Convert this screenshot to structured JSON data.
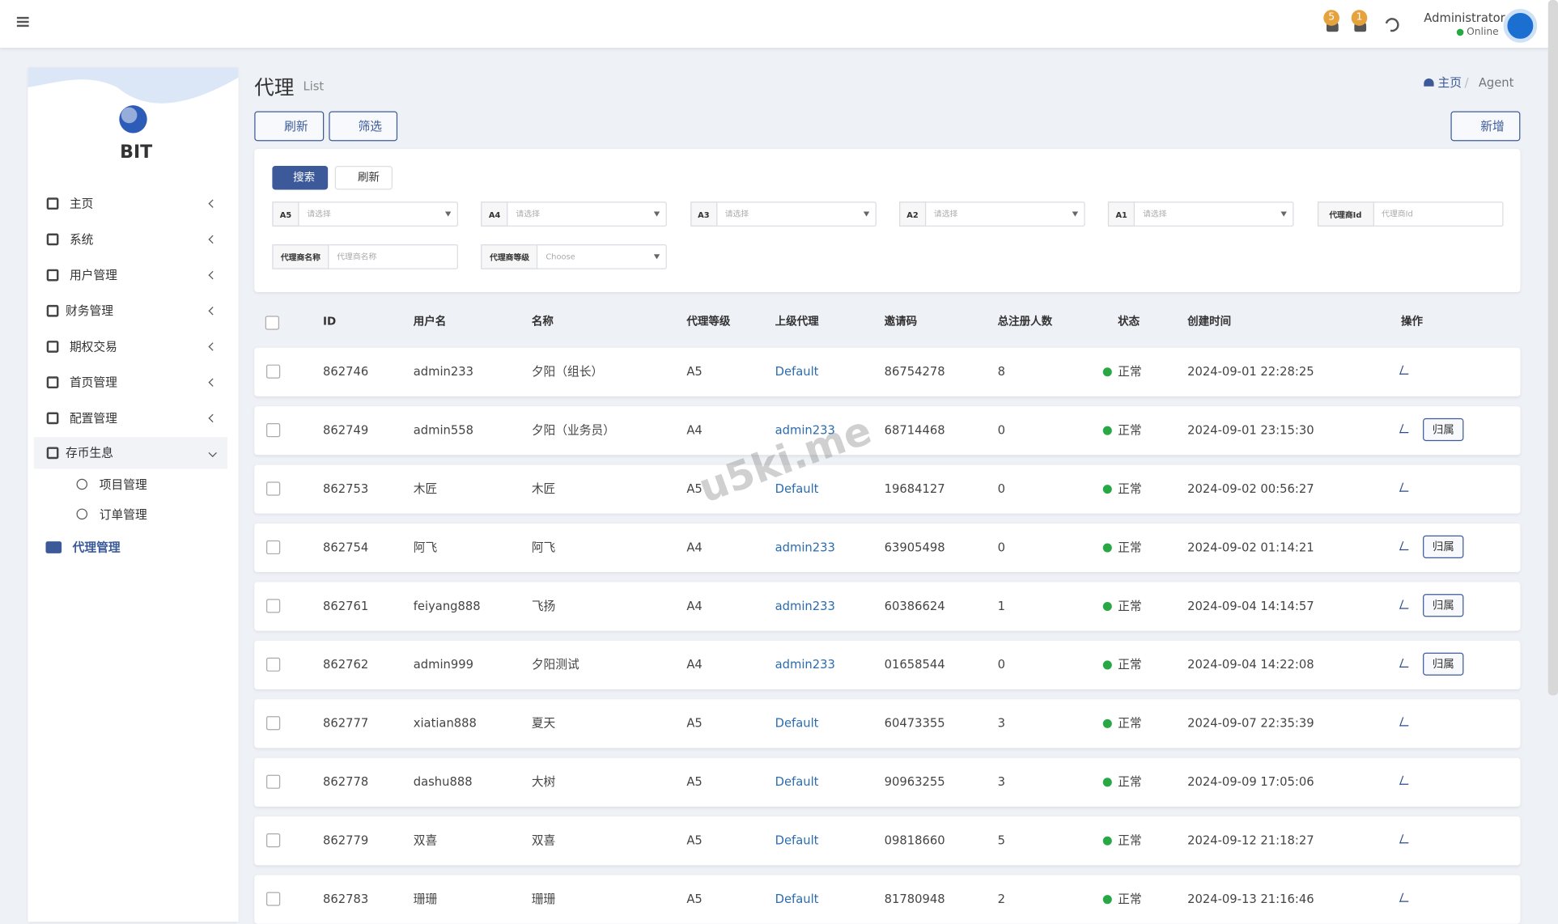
{
  "header": {
    "badges": [
      "5",
      "1"
    ],
    "user": "Administrator",
    "status": "Online"
  },
  "sidebar": {
    "brand": "BIT",
    "menu": [
      "主页",
      "系统",
      "用户管理",
      "财务管理",
      "期权交易",
      "首页管理",
      "配置管理",
      "存币生息"
    ],
    "submenu": [
      "项目管理",
      "订单管理"
    ],
    "active": "代理管理"
  },
  "page": {
    "title": "代理",
    "subtitle": "List",
    "breadcrumb": [
      "主页",
      "Agent"
    ],
    "buttons": {
      "refresh": "刷新",
      "filter": "筛选",
      "add": "新增"
    }
  },
  "search": {
    "submit": "搜索",
    "reset": "刷新",
    "filters": [
      {
        "label": "A5",
        "placeholder": "请选择",
        "select": true
      },
      {
        "label": "A4",
        "placeholder": "请选择",
        "select": true
      },
      {
        "label": "A3",
        "placeholder": "请选择",
        "select": true
      },
      {
        "label": "A2",
        "placeholder": "请选择",
        "select": true
      },
      {
        "label": "A1",
        "placeholder": "请选择",
        "select": true
      },
      {
        "label": "代理商Id",
        "placeholder": "代理商Id",
        "select": false
      },
      {
        "label": "代理商名称",
        "placeholder": "代理商名称",
        "select": false
      },
      {
        "label": "代理商等级",
        "placeholder": "Choose",
        "select": true
      }
    ]
  },
  "table": {
    "columns": [
      "ID",
      "用户名",
      "名称",
      "代理等级",
      "上级代理",
      "邀请码",
      "总注册人数",
      "状态",
      "创建时间",
      "操作"
    ],
    "rows": [
      {
        "cells": [
          "862746",
          "admin233",
          "夕阳（组长）",
          "A5",
          "Default",
          "86754278",
          "8",
          "正常",
          "2024-09-01 22:28:25"
        ]
      },
      {
        "cells": [
          "862749",
          "admin558",
          "夕阳（业务员）",
          "A4",
          "admin233",
          "68714468",
          "0",
          "正常",
          "2024-09-01 23:15:30"
        ],
        "action": "归属"
      },
      {
        "cells": [
          "862753",
          "木匠",
          "木匠",
          "A5",
          "Default",
          "19684127",
          "0",
          "正常",
          "2024-09-02 00:56:27"
        ]
      },
      {
        "cells": [
          "862754",
          "阿飞",
          "阿飞",
          "A4",
          "admin233",
          "63905498",
          "0",
          "正常",
          "2024-09-02 01:14:21"
        ],
        "action": "归属"
      },
      {
        "cells": [
          "862761",
          "feiyang888",
          "飞扬",
          "A4",
          "admin233",
          "60386624",
          "1",
          "正常",
          "2024-09-04 14:14:57"
        ],
        "action": "归属"
      },
      {
        "cells": [
          "862762",
          "admin999",
          "夕阳测试",
          "A4",
          "admin233",
          "01658544",
          "0",
          "正常",
          "2024-09-04 14:22:08"
        ],
        "action": "归属"
      },
      {
        "cells": [
          "862777",
          "xiatian888",
          "夏天",
          "A5",
          "Default",
          "60473355",
          "3",
          "正常",
          "2024-09-07 22:35:39"
        ]
      },
      {
        "cells": [
          "862778",
          "dashu888",
          "大树",
          "A5",
          "Default",
          "90963255",
          "3",
          "正常",
          "2024-09-09 17:05:06"
        ]
      },
      {
        "cells": [
          "862779",
          "双喜",
          "双喜",
          "A5",
          "Default",
          "09818660",
          "5",
          "正常",
          "2024-09-12 21:18:27"
        ]
      },
      {
        "cells": [
          "862783",
          "珊珊",
          "珊珊",
          "A5",
          "Default",
          "81780948",
          "2",
          "正常",
          "2024-09-13 21:16:46"
        ]
      }
    ]
  },
  "watermark": "u5ki.me"
}
